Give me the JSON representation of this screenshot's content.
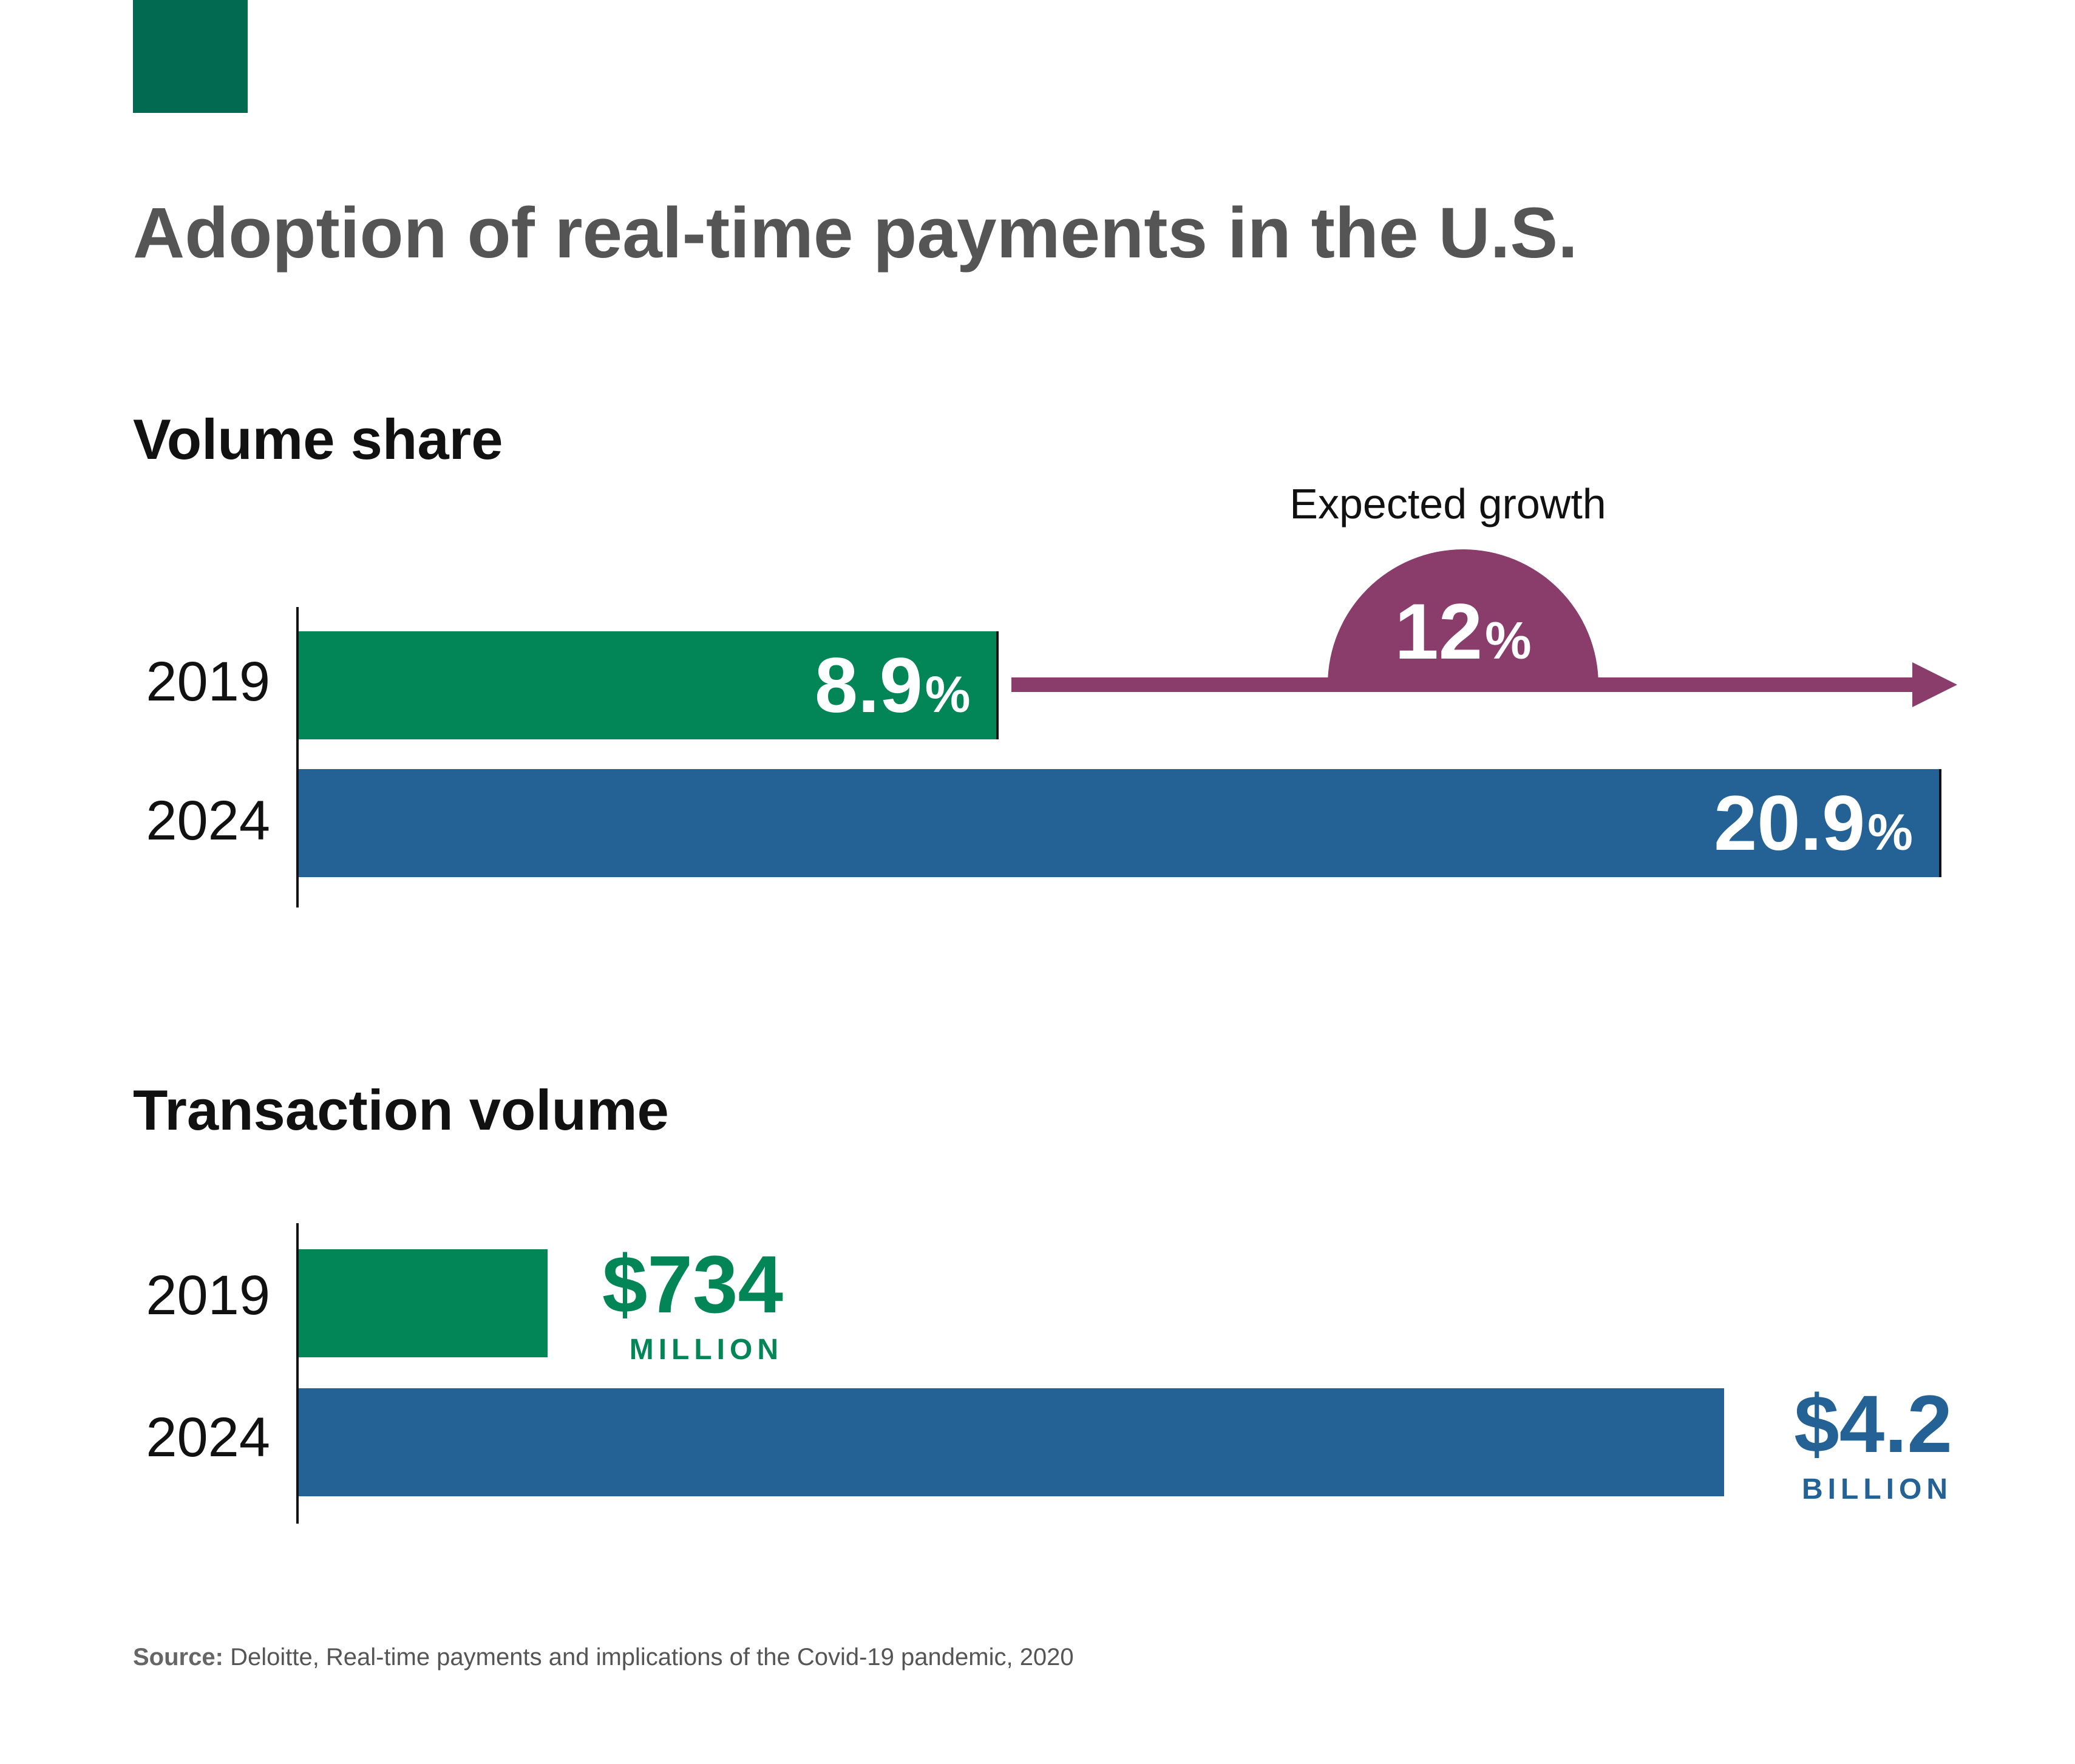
{
  "colors": {
    "brand_green_block": "#026a51",
    "green": "#028658",
    "blue": "#246194",
    "purple": "#8a3d6a",
    "title_gray": "#555555",
    "text_black": "#111111"
  },
  "title": "Adoption of real-time payments in the U.S.",
  "volume_share": {
    "title": "Volume share",
    "growth_caption": "Expected growth",
    "growth_value": "12",
    "growth_unit": "%",
    "bars": [
      {
        "year": "2019",
        "value": "8.9",
        "unit": "%",
        "color": "#028658"
      },
      {
        "year": "2024",
        "value": "20.9",
        "unit": "%",
        "color": "#246194"
      }
    ]
  },
  "transaction_volume": {
    "title": "Transaction volume",
    "bars": [
      {
        "year": "2019",
        "amount": "$734",
        "unit": "MILLION",
        "color": "#028658"
      },
      {
        "year": "2024",
        "amount": "$4.2",
        "unit": "BILLION",
        "color": "#246194"
      }
    ]
  },
  "source": {
    "label": "Source:",
    "text": "Deloitte,  Real-time payments and implications of the Covid-19 pandemic, 2020"
  },
  "chart_data": [
    {
      "type": "bar",
      "orientation": "horizontal",
      "title": "Volume share",
      "categories": [
        "2019",
        "2024"
      ],
      "values": [
        8.9,
        20.9
      ],
      "unit": "%",
      "annotation": {
        "label": "Expected growth",
        "value": 12,
        "unit": "%"
      },
      "grid": false
    },
    {
      "type": "bar",
      "orientation": "horizontal",
      "title": "Transaction volume",
      "categories": [
        "2019",
        "2024"
      ],
      "values": [
        734000000,
        4200000000
      ],
      "value_labels": [
        "$734 MILLION",
        "$4.2 BILLION"
      ],
      "unit": "USD",
      "grid": false
    }
  ]
}
